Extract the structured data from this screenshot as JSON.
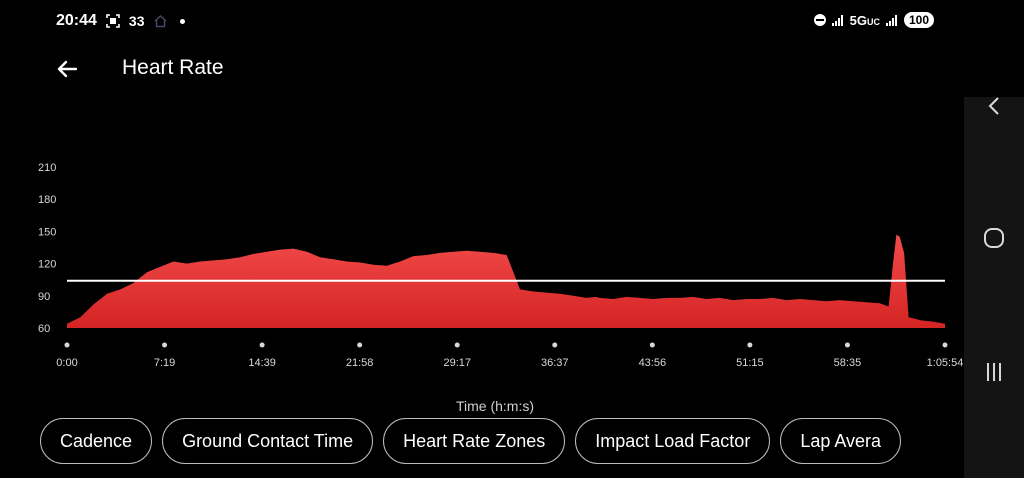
{
  "status_bar": {
    "time": "20:44",
    "notification_count": "33",
    "network": "5G",
    "network_suffix": "UC",
    "battery": "100"
  },
  "header": {
    "title": "Heart Rate"
  },
  "chips": [
    {
      "label": "Cadence"
    },
    {
      "label": "Ground Contact Time"
    },
    {
      "label": "Heart Rate Zones"
    },
    {
      "label": "Impact Load Factor"
    },
    {
      "label": "Lap Avera"
    }
  ],
  "colors": {
    "fill_top": "#f44b4b",
    "fill_bottom": "#d42424",
    "average_line": "#ffffff"
  },
  "chart_data": {
    "type": "area",
    "xlabel": "Time (h:m:s)",
    "ylabel": "",
    "ylim": [
      60,
      210
    ],
    "xlim": [
      0,
      3954
    ],
    "y_ticks": [
      "60",
      "90",
      "120",
      "150",
      "180",
      "210"
    ],
    "x_ticks": [
      "0:00",
      "7:19",
      "14:39",
      "21:58",
      "29:17",
      "36:37",
      "43:56",
      "51:15",
      "58:35",
      "1:05:54"
    ],
    "average": 104,
    "series": [
      {
        "x": [
          0,
          60,
          120,
          180,
          240,
          300,
          360,
          420,
          480,
          540,
          600,
          660,
          720,
          780,
          840,
          900,
          960,
          1020,
          1080,
          1140,
          1200,
          1260,
          1320,
          1380,
          1440,
          1500,
          1560,
          1620,
          1680,
          1740,
          1800,
          1860,
          1920,
          1980,
          2040,
          2100,
          2160,
          2220,
          2280,
          2340,
          2380,
          2400,
          2460,
          2520,
          2580,
          2640,
          2700,
          2760,
          2820,
          2880,
          2940,
          3000,
          3060,
          3120,
          3180,
          3240,
          3300,
          3360,
          3420,
          3480,
          3540,
          3600,
          3660,
          3700,
          3720,
          3735,
          3750,
          3770,
          3790,
          3810,
          3850,
          3900,
          3954
        ],
        "values": [
          64,
          70,
          82,
          92,
          96,
          102,
          112,
          117,
          122,
          120,
          122,
          123,
          124,
          126,
          129,
          131,
          133,
          134,
          131,
          126,
          124,
          122,
          121,
          119,
          118,
          122,
          127,
          128,
          130,
          131,
          132,
          131,
          130,
          128,
          96,
          94,
          93,
          92,
          90,
          88,
          89,
          88,
          87,
          89,
          88,
          87,
          88,
          88,
          89,
          87,
          88,
          86,
          87,
          87,
          88,
          86,
          87,
          86,
          85,
          86,
          85,
          84,
          83,
          80,
          120,
          147,
          145,
          130,
          70,
          69,
          67,
          66,
          64
        ]
      }
    ]
  }
}
